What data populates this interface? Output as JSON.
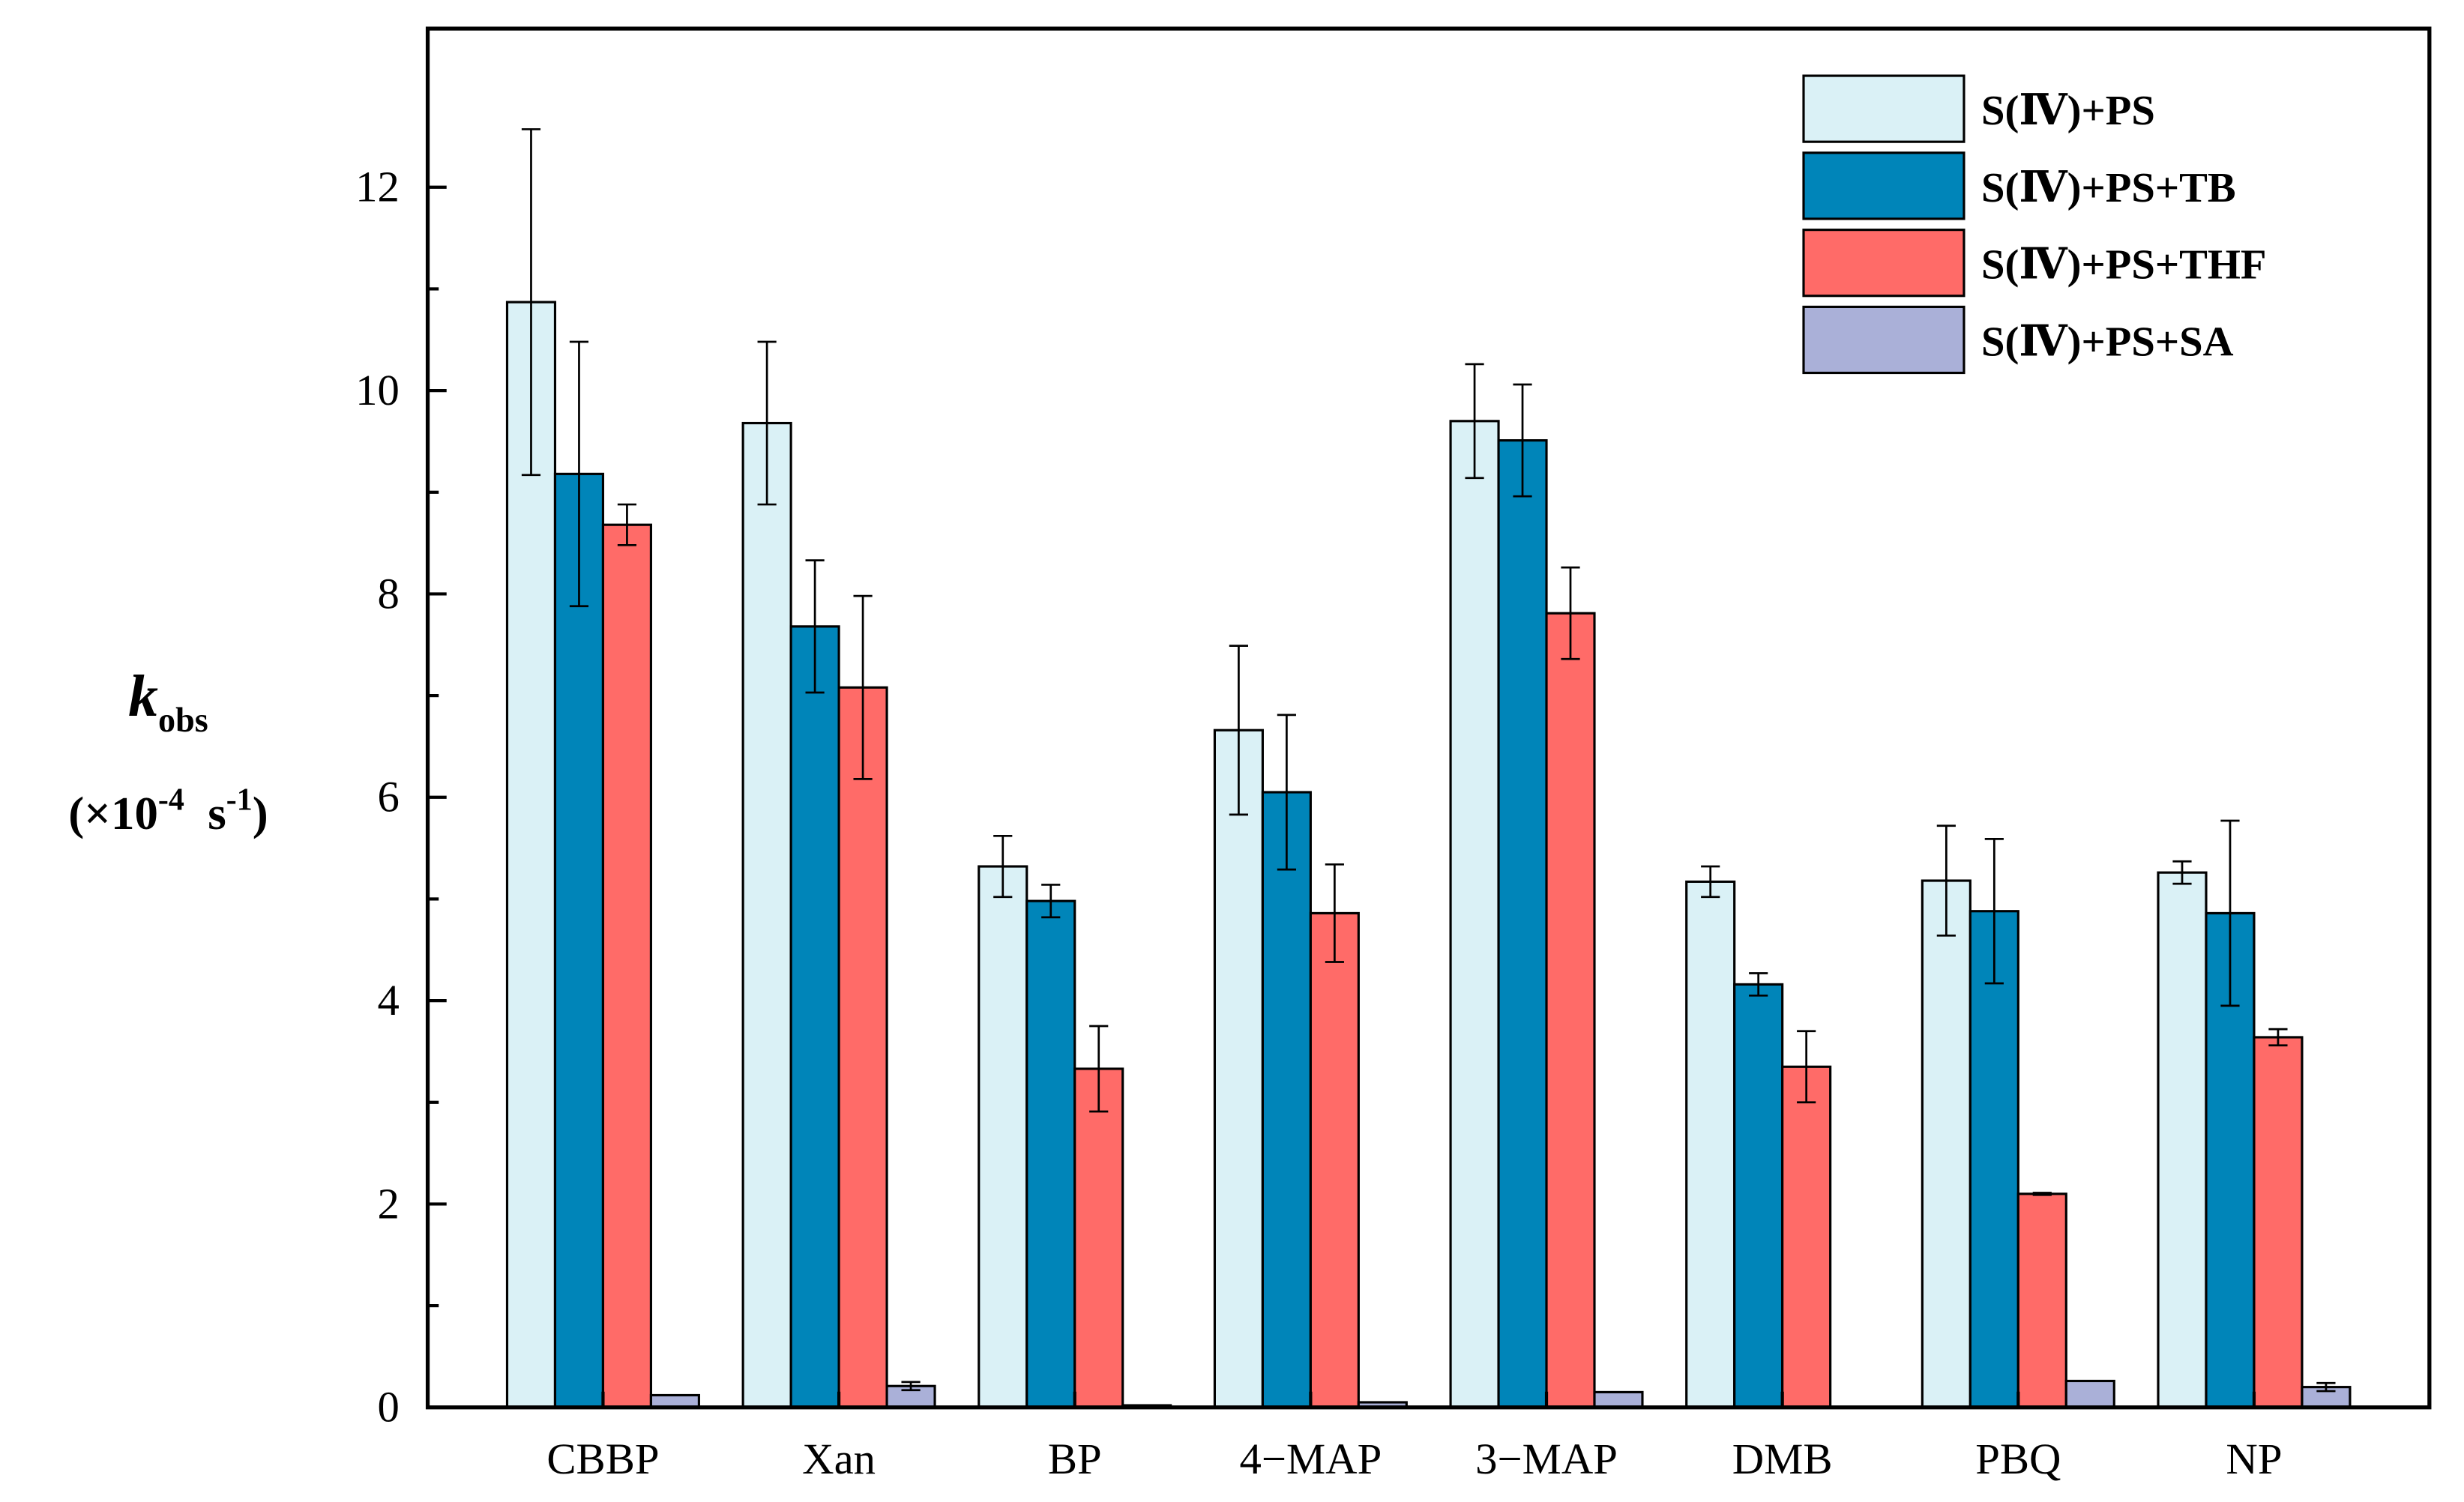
{
  "chart_data": {
    "type": "bar",
    "ylabel": {
      "symbol": "k",
      "subscript": "obs",
      "unit": [
        "(×10",
        "-4",
        "  s",
        "-1",
        ")"
      ]
    },
    "categories": [
      "CBBP",
      "Xan",
      "BP",
      "4−MAP",
      "3−MAP",
      "DMB",
      "PBQ",
      "NP"
    ],
    "series": [
      {
        "name": "S(Ⅳ)+PS",
        "color": "#daf1f6",
        "values": [
          10.87,
          9.68,
          5.32,
          6.66,
          9.7,
          5.17,
          5.18,
          5.26
        ],
        "errors": [
          1.7,
          0.8,
          0.3,
          0.83,
          0.56,
          0.15,
          0.54,
          0.11
        ]
      },
      {
        "name": "S(Ⅳ)+PS+TB",
        "color": "#0085b9",
        "values": [
          9.18,
          7.68,
          4.98,
          6.05,
          9.51,
          4.16,
          4.88,
          4.86
        ],
        "errors": [
          1.3,
          0.65,
          0.16,
          0.76,
          0.55,
          0.11,
          0.71,
          0.91
        ]
      },
      {
        "name": "S(Ⅳ)+PS+THF",
        "color": "#ff6b68",
        "values": [
          8.68,
          7.08,
          3.33,
          4.86,
          7.81,
          3.35,
          2.1,
          3.64
        ],
        "errors": [
          0.2,
          0.9,
          0.42,
          0.48,
          0.45,
          0.35,
          0.01,
          0.08
        ]
      },
      {
        "name": "S(Ⅳ)+PS+SA",
        "color": "#aab0d8",
        "values": [
          0.12,
          0.21,
          0.02,
          0.05,
          0.15,
          null,
          0.26,
          0.2
        ],
        "errors": [
          null,
          0.04,
          null,
          null,
          null,
          null,
          null,
          0.04
        ]
      }
    ],
    "ylim": [
      0,
      13.56
    ],
    "yticks": [
      0,
      2,
      4,
      6,
      8,
      10,
      12
    ],
    "legend": "upper-right"
  }
}
